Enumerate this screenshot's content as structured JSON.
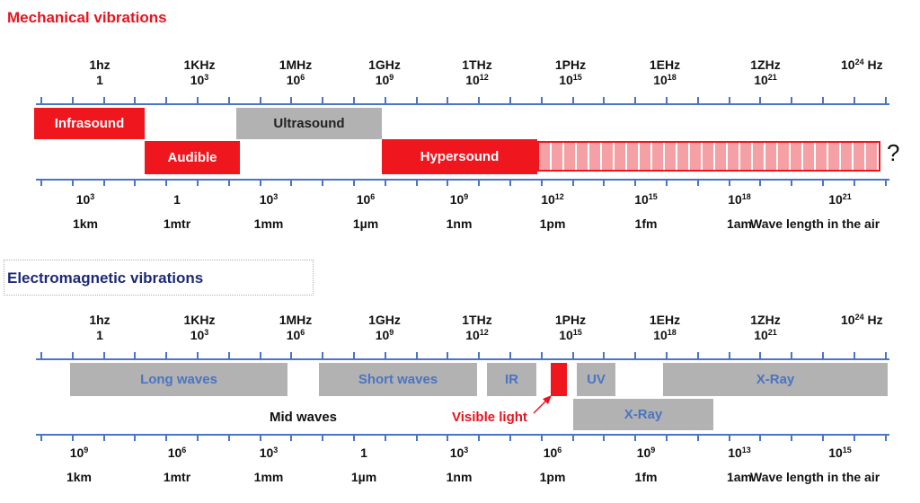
{
  "mechanical": {
    "title": "Mechanical vibrations",
    "freq_labels": [
      {
        "top": "1hz",
        "bottom": "1",
        "sup": ""
      },
      {
        "top": "1KHz",
        "bottom": "10",
        "sup": "3"
      },
      {
        "top": "1MHz",
        "bottom": "10",
        "sup": "6"
      },
      {
        "top": "1GHz",
        "bottom": "10",
        "sup": "9"
      },
      {
        "top": "1THz",
        "bottom": "10",
        "sup": "12"
      },
      {
        "top": "1PHz",
        "bottom": "10",
        "sup": "15"
      },
      {
        "top": "1EHz",
        "bottom": "10",
        "sup": "18"
      },
      {
        "top": "1ZHz",
        "bottom": "10",
        "sup": "21"
      },
      {
        "top": "",
        "bottom": "10",
        "sup": "24",
        "suffix": " Hz"
      }
    ],
    "bands": {
      "infrasound": "Infrasound",
      "ultrasound": "Ultrasound",
      "audible": "Audible",
      "hypersound": "Hypersound"
    },
    "unknown_mark": "?",
    "wave_labels": [
      {
        "top": "10",
        "sup": "3",
        "bottom": "1km"
      },
      {
        "top": "1",
        "sup": "",
        "bottom": "1mtr"
      },
      {
        "top": "10",
        "sup": "3",
        "bottom": "1mm"
      },
      {
        "top": "10",
        "sup": "6",
        "bottom": "1µm"
      },
      {
        "top": "10",
        "sup": "9",
        "bottom": "1nm"
      },
      {
        "top": "10",
        "sup": "12",
        "bottom": "1pm"
      },
      {
        "top": "10",
        "sup": "15",
        "bottom": "1fm"
      },
      {
        "top": "10",
        "sup": "18",
        "bottom": "1am"
      },
      {
        "top": "10",
        "sup": "21",
        "bottom": "Wave length in the air"
      }
    ]
  },
  "electromagnetic": {
    "title": "Electromagnetic vibrations",
    "freq_labels": [
      {
        "top": "1hz",
        "bottom": "1",
        "sup": ""
      },
      {
        "top": "1KHz",
        "bottom": "10",
        "sup": "3"
      },
      {
        "top": "1MHz",
        "bottom": "10",
        "sup": "6"
      },
      {
        "top": "1GHz",
        "bottom": "10",
        "sup": "9"
      },
      {
        "top": "1THz",
        "bottom": "10",
        "sup": "12"
      },
      {
        "top": "1PHz",
        "bottom": "10",
        "sup": "15"
      },
      {
        "top": "1EHz",
        "bottom": "10",
        "sup": "18"
      },
      {
        "top": "1ZHz",
        "bottom": "10",
        "sup": "21"
      },
      {
        "top": "",
        "bottom": "10",
        "sup": "24",
        "suffix": " Hz"
      }
    ],
    "bands": {
      "long_waves": "Long waves",
      "short_waves": "Short waves",
      "ir": "IR",
      "uv": "UV",
      "xray_top": "X-Ray",
      "xray_bottom": "X-Ray"
    },
    "mid_waves": "Mid waves",
    "visible_light": "Visible light",
    "wave_labels": [
      {
        "top": "10",
        "sup": "9",
        "bottom": "1km"
      },
      {
        "top": "10",
        "sup": "6",
        "bottom": "1mtr"
      },
      {
        "top": "10",
        "sup": "3",
        "bottom": "1mm"
      },
      {
        "top": "1",
        "sup": "",
        "bottom": "1µm"
      },
      {
        "top": "10",
        "sup": "3",
        "bottom": "1nm"
      },
      {
        "top": "10",
        "sup": "6",
        "bottom": "1pm"
      },
      {
        "top": "10",
        "sup": "9",
        "bottom": "1fm"
      },
      {
        "top": "10",
        "sup": "13",
        "bottom": "1am"
      },
      {
        "top": "10",
        "sup": "15",
        "bottom": "Wave length in the air"
      }
    ]
  },
  "colors": {
    "axis": "#4a74c4",
    "red": "#f0161e",
    "gray": "#b2b2b2",
    "mech_title": "#e8141e",
    "em_title": "#1e2a78"
  }
}
